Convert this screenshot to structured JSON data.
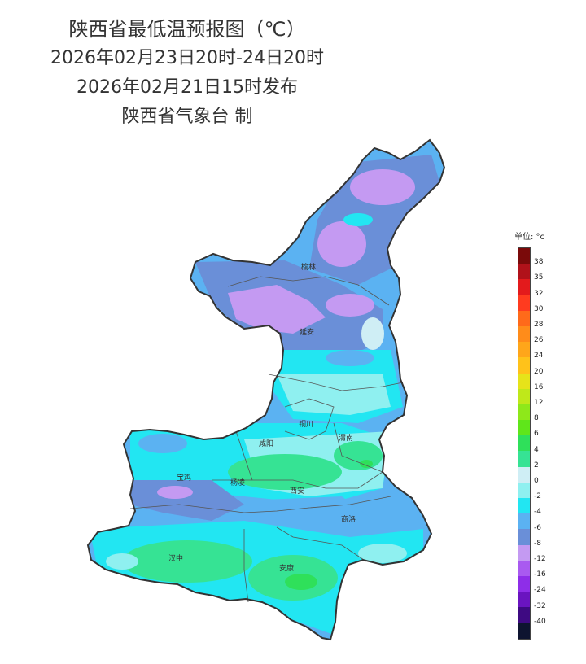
{
  "header": {
    "title": "陕西省最低温预报图（℃）",
    "valid_period": "2026年02月23日20时-24日20时",
    "issued": "2026年02月21日15时发布",
    "producer": "陕西省气象台 制"
  },
  "legend": {
    "unit_label": "单位: °c",
    "classes": [
      {
        "label": "38",
        "color": "#7a0a0a"
      },
      {
        "label": "35",
        "color": "#b0121a"
      },
      {
        "label": "32",
        "color": "#e31a1c"
      },
      {
        "label": "30",
        "color": "#ff3b1f"
      },
      {
        "label": "28",
        "color": "#ff6a1a"
      },
      {
        "label": "26",
        "color": "#ff8c1a"
      },
      {
        "label": "24",
        "color": "#ffa61a"
      },
      {
        "label": "20",
        "color": "#ffc21a"
      },
      {
        "label": "16",
        "color": "#e6e31a"
      },
      {
        "label": "12",
        "color": "#bfe81a"
      },
      {
        "label": "8",
        "color": "#8ee81a"
      },
      {
        "label": "6",
        "color": "#5fe61a"
      },
      {
        "label": "4",
        "color": "#2fe05a"
      },
      {
        "label": "2",
        "color": "#36e394"
      },
      {
        "label": "0",
        "color": "#cfeef5"
      },
      {
        "label": "-2",
        "color": "#8ff0f0"
      },
      {
        "label": "-4",
        "color": "#22e6f2"
      },
      {
        "label": "-6",
        "color": "#5bb2f2"
      },
      {
        "label": "-8",
        "color": "#6a8fd8"
      },
      {
        "label": "-12",
        "color": "#c49af2"
      },
      {
        "label": "-16",
        "color": "#a95af0"
      },
      {
        "label": "-24",
        "color": "#8e2ee8"
      },
      {
        "label": "-32",
        "color": "#6a14c0"
      },
      {
        "label": "-40",
        "color": "#3e0a82"
      },
      {
        "label": "",
        "color": "#0e1430"
      }
    ]
  },
  "map": {
    "cities": [
      "榆林",
      "延安",
      "铜川",
      "渭南",
      "咸阳",
      "宝鸡",
      "杨凌",
      "西安",
      "商洛",
      "汉中",
      "安康"
    ]
  }
}
